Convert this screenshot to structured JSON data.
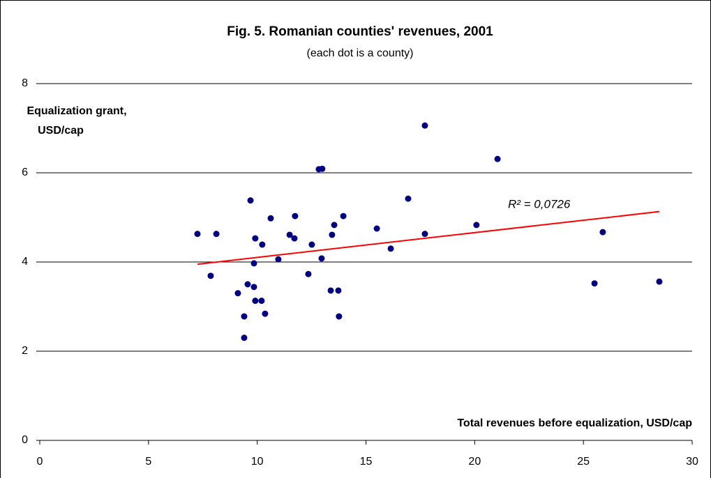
{
  "chart_data": {
    "type": "scatter",
    "title": "Fig. 5. Romanian counties' revenues, 2001",
    "subtitle": "(each dot is a county)",
    "x_label": "Total revenues before equalization, USD/cap",
    "y_label": [
      "Equalization grant,",
      "USD/cap"
    ],
    "color": "#000080",
    "x": [
      7.25,
      7.86,
      8.12,
      9.11,
      9.4,
      9.4,
      9.56,
      9.69,
      9.85,
      9.85,
      9.91,
      9.91,
      10.2,
      10.23,
      10.36,
      10.62,
      10.97,
      11.49,
      11.71,
      11.74,
      12.35,
      12.51,
      12.83,
      12.99,
      12.96,
      13.38,
      13.44,
      13.54,
      13.73,
      13.76,
      13.96,
      15.5,
      16.14,
      16.94,
      17.71,
      17.71,
      20.08,
      21.05,
      25.51,
      25.89,
      28.49
    ],
    "values": [
      4.63,
      3.69,
      4.63,
      3.3,
      2.78,
      2.3,
      3.5,
      5.38,
      3.97,
      3.44,
      4.53,
      3.13,
      3.13,
      4.39,
      2.84,
      4.98,
      4.06,
      4.61,
      4.53,
      5.03,
      3.73,
      4.39,
      6.08,
      6.09,
      4.08,
      3.36,
      4.61,
      4.83,
      3.36,
      2.78,
      5.03,
      4.75,
      4.3,
      5.42,
      7.06,
      4.63,
      4.83,
      6.31,
      3.52,
      4.67,
      3.56
    ],
    "trendline": {
      "color": "#ff0000",
      "x": [
        7.25,
        28.49
      ],
      "values": [
        3.95,
        5.13
      ],
      "label": "R² = 0,0726"
    },
    "xlim": [
      0,
      30
    ],
    "xticks": [
      0,
      5,
      10,
      15,
      20,
      25,
      30
    ],
    "ylim": [
      0,
      8
    ],
    "yticks": [
      0,
      2,
      4,
      6,
      8
    ],
    "grid": true
  }
}
